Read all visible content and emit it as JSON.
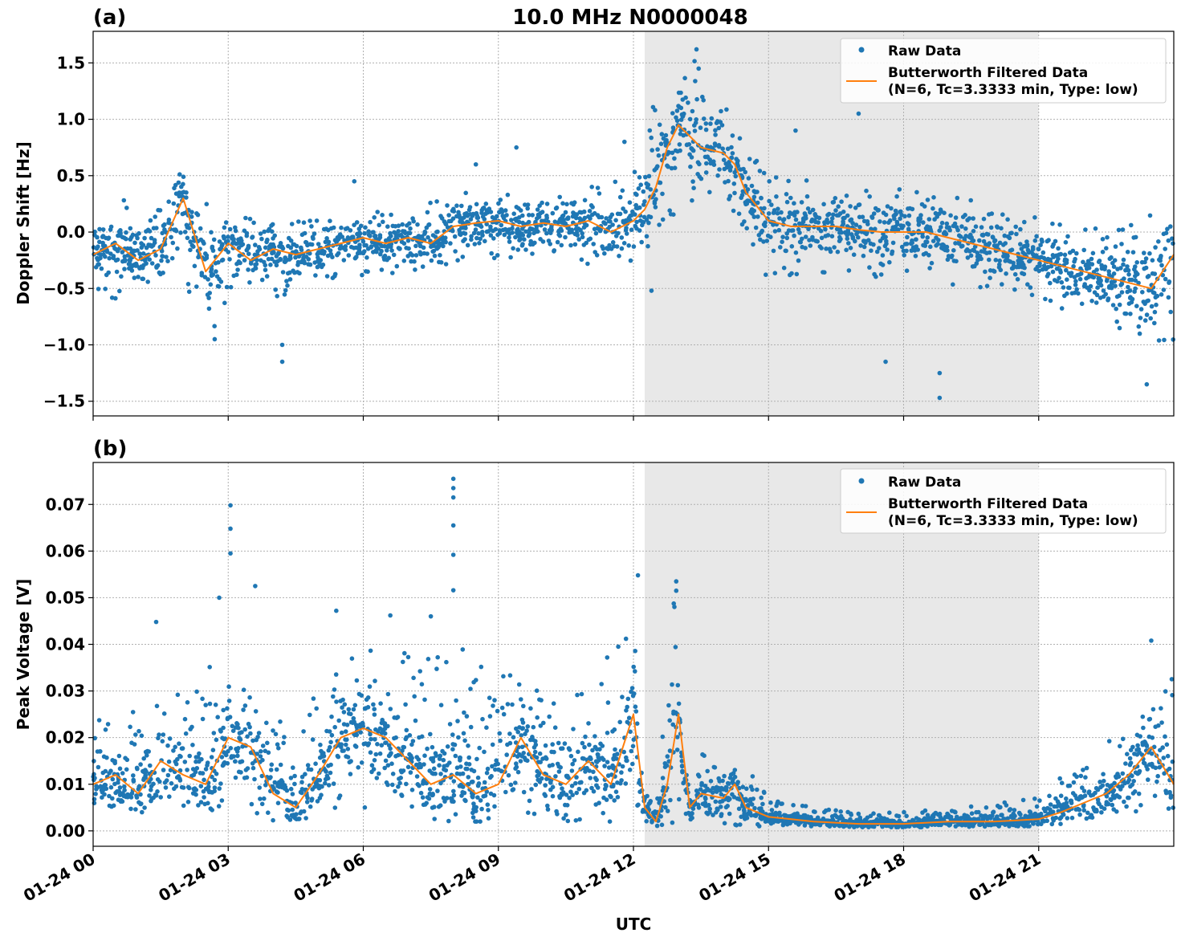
{
  "figure": {
    "title": "10.0 MHz N0000048",
    "xlabel": "UTC",
    "legend": {
      "raw_label": "Raw Data",
      "filtered_label_line1": "Butterworth Filtered Data",
      "filtered_label_line2": "(N=6, Tc=3.3333 min, Type: low)"
    },
    "shaded_interval_hours": [
      12.25,
      21.0
    ],
    "colors": {
      "raw": "#1f77b4",
      "filtered": "#ff7f0e",
      "shade": "#e8e8e8",
      "grid": "#b0b0b0"
    }
  },
  "chart_data": [
    {
      "type": "scatter",
      "panel_label": "(a)",
      "ylabel": "Doppler Shift [Hz]",
      "x_unit": "hours since 01-24 00 UTC",
      "xlim": [
        0,
        24
      ],
      "ylim": [
        -1.63,
        1.78
      ],
      "yticks": [
        1.5,
        1.0,
        0.5,
        0.0,
        -0.5,
        -1.0,
        -1.5
      ],
      "ytick_labels": [
        "1.5",
        "1.0",
        "0.5",
        "0.0",
        "−0.5",
        "−1.0",
        "−1.5"
      ],
      "xticks": [
        0,
        3,
        6,
        9,
        12,
        15,
        18,
        21
      ],
      "xtick_labels": [
        "01-24 00",
        "01-24 03",
        "01-24 06",
        "01-24 09",
        "01-24 12",
        "01-24 15",
        "01-24 18",
        "01-24 21"
      ],
      "grid": true,
      "legend_position": "top-right",
      "series": [
        {
          "name": "Butterworth Filtered Data",
          "x": [
            0,
            0.5,
            1,
            1.5,
            2,
            2.5,
            3,
            3.5,
            4,
            4.5,
            5,
            5.5,
            6,
            6.5,
            7,
            7.5,
            8,
            8.5,
            9,
            9.5,
            10,
            10.5,
            11,
            11.5,
            12,
            12.25,
            12.5,
            12.75,
            13,
            13.5,
            14,
            14.25,
            14.5,
            15,
            15.5,
            16,
            16.5,
            17,
            17.5,
            18,
            18.5,
            19,
            19.5,
            20,
            20.5,
            21,
            21.5,
            22,
            22.5,
            23,
            23.5,
            24
          ],
          "y": [
            -0.2,
            -0.1,
            -0.25,
            -0.15,
            0.3,
            -0.35,
            -0.1,
            -0.25,
            -0.15,
            -0.2,
            -0.15,
            -0.1,
            -0.05,
            -0.1,
            -0.05,
            -0.1,
            0.05,
            0.08,
            0.1,
            0.05,
            0.08,
            0.05,
            0.1,
            0.0,
            0.1,
            0.2,
            0.4,
            0.75,
            0.95,
            0.75,
            0.7,
            0.6,
            0.35,
            0.1,
            0.05,
            0.05,
            0.05,
            0.02,
            0.0,
            0.0,
            0.0,
            -0.05,
            -0.1,
            -0.15,
            -0.2,
            -0.25,
            -0.3,
            -0.35,
            -0.4,
            -0.45,
            -0.5,
            -0.2
          ]
        }
      ],
      "raw_envelope": {
        "name": "Raw Data",
        "x": [
          0,
          1,
          2,
          2.7,
          3,
          4,
          5,
          6,
          7,
          8,
          9,
          10,
          11,
          12,
          12.5,
          13,
          13.4,
          14,
          14.5,
          15,
          16,
          17,
          18,
          19,
          20,
          21,
          22,
          23,
          24
        ],
        "low": [
          -0.6,
          -0.6,
          -0.5,
          -0.95,
          -0.6,
          -0.6,
          -0.45,
          -0.4,
          -0.35,
          -0.3,
          -0.25,
          -0.3,
          -0.3,
          -0.25,
          -0.2,
          0.2,
          0.3,
          0.25,
          0.0,
          -0.45,
          -0.35,
          -0.4,
          -0.45,
          -0.5,
          -0.55,
          -0.6,
          -0.75,
          -0.95,
          -1.2
        ],
        "high": [
          0.25,
          0.3,
          0.55,
          0.2,
          0.15,
          0.15,
          0.15,
          0.2,
          0.2,
          0.35,
          0.35,
          0.35,
          0.4,
          0.5,
          1.2,
          1.35,
          1.55,
          1.2,
          0.8,
          0.5,
          0.45,
          0.45,
          0.4,
          0.35,
          0.25,
          0.15,
          0.1,
          0.1,
          0.2
        ]
      },
      "outliers": [
        {
          "x": 4.2,
          "y": -1.15
        },
        {
          "x": 4.2,
          "y": -1.0
        },
        {
          "x": 5.8,
          "y": 0.45
        },
        {
          "x": 8.5,
          "y": 0.6
        },
        {
          "x": 9.4,
          "y": 0.75
        },
        {
          "x": 11.8,
          "y": 0.8
        },
        {
          "x": 13.4,
          "y": 1.62
        },
        {
          "x": 15.6,
          "y": 0.9
        },
        {
          "x": 17.0,
          "y": 1.05
        },
        {
          "x": 17.6,
          "y": -1.15
        },
        {
          "x": 18.8,
          "y": -1.25
        },
        {
          "x": 18.8,
          "y": -1.47
        },
        {
          "x": 23.4,
          "y": -1.35
        },
        {
          "x": 2.7,
          "y": -0.95
        },
        {
          "x": 12.4,
          "y": -0.52
        }
      ]
    },
    {
      "type": "scatter",
      "panel_label": "(b)",
      "ylabel": "Peak Voltage [V]",
      "x_unit": "hours since 01-24 00 UTC",
      "xlim": [
        0,
        24
      ],
      "ylim": [
        -0.0033,
        0.079
      ],
      "yticks": [
        0.07,
        0.06,
        0.05,
        0.04,
        0.03,
        0.02,
        0.01,
        0.0
      ],
      "ytick_labels": [
        "0.07",
        "0.06",
        "0.05",
        "0.04",
        "0.03",
        "0.02",
        "0.01",
        "0.00"
      ],
      "xticks": [
        0,
        3,
        6,
        9,
        12,
        15,
        18,
        21
      ],
      "xtick_labels": [
        "01-24 00",
        "01-24 03",
        "01-24 06",
        "01-24 09",
        "01-24 12",
        "01-24 15",
        "01-24 18",
        "01-24 21"
      ],
      "grid": true,
      "legend_position": "top-right",
      "series": [
        {
          "name": "Butterworth Filtered Data",
          "x": [
            0,
            0.5,
            1,
            1.5,
            2,
            2.5,
            3,
            3.5,
            4,
            4.5,
            5,
            5.5,
            6,
            6.5,
            7,
            7.5,
            8,
            8.5,
            9,
            9.5,
            10,
            10.5,
            11,
            11.5,
            12,
            12.25,
            12.5,
            12.75,
            13,
            13.25,
            13.5,
            14,
            14.25,
            14.5,
            15,
            15.5,
            16,
            17,
            18,
            19,
            20,
            21,
            21.5,
            22,
            22.5,
            23,
            23.5,
            24
          ],
          "y": [
            0.01,
            0.012,
            0.008,
            0.015,
            0.012,
            0.01,
            0.02,
            0.018,
            0.008,
            0.005,
            0.012,
            0.02,
            0.022,
            0.02,
            0.015,
            0.01,
            0.012,
            0.008,
            0.01,
            0.02,
            0.012,
            0.01,
            0.015,
            0.01,
            0.025,
            0.005,
            0.002,
            0.01,
            0.025,
            0.005,
            0.008,
            0.007,
            0.01,
            0.005,
            0.003,
            0.0025,
            0.002,
            0.0015,
            0.0015,
            0.002,
            0.002,
            0.0025,
            0.004,
            0.006,
            0.008,
            0.012,
            0.018,
            0.01
          ]
        }
      ],
      "raw_envelope": {
        "name": "Raw Data",
        "x": [
          0,
          1,
          2,
          3,
          4,
          5,
          6,
          7,
          8,
          9,
          10,
          11,
          12,
          12.25,
          12.5,
          12.9,
          13.1,
          13.5,
          14,
          14.5,
          15,
          16,
          17,
          18,
          19,
          20,
          21,
          22,
          23,
          24
        ],
        "low": [
          0.004,
          0.004,
          0.004,
          0.004,
          0.002,
          0.003,
          0.004,
          0.003,
          0.002,
          0.002,
          0.002,
          0.002,
          0.002,
          0.001,
          0.001,
          0.001,
          0.001,
          0.001,
          0.001,
          0.001,
          0.001,
          0.001,
          0.0008,
          0.0008,
          0.0008,
          0.001,
          0.001,
          0.002,
          0.003,
          0.005
        ],
        "high": [
          0.03,
          0.025,
          0.03,
          0.04,
          0.025,
          0.03,
          0.04,
          0.04,
          0.04,
          0.035,
          0.03,
          0.03,
          0.05,
          0.01,
          0.005,
          0.05,
          0.01,
          0.02,
          0.015,
          0.015,
          0.007,
          0.005,
          0.004,
          0.004,
          0.005,
          0.006,
          0.008,
          0.015,
          0.025,
          0.035
        ]
      },
      "outliers": [
        {
          "x": 3.05,
          "y": 0.0698
        },
        {
          "x": 3.05,
          "y": 0.0648
        },
        {
          "x": 3.05,
          "y": 0.0595
        },
        {
          "x": 2.8,
          "y": 0.05
        },
        {
          "x": 3.6,
          "y": 0.0525
        },
        {
          "x": 5.4,
          "y": 0.0472
        },
        {
          "x": 8.0,
          "y": 0.0755
        },
        {
          "x": 8.0,
          "y": 0.0735
        },
        {
          "x": 8.0,
          "y": 0.0715
        },
        {
          "x": 8.0,
          "y": 0.0655
        },
        {
          "x": 8.0,
          "y": 0.0592
        },
        {
          "x": 8.0,
          "y": 0.0516
        },
        {
          "x": 12.1,
          "y": 0.0548
        },
        {
          "x": 12.95,
          "y": 0.0535
        },
        {
          "x": 12.95,
          "y": 0.0515
        },
        {
          "x": 23.5,
          "y": 0.0408
        },
        {
          "x": 1.4,
          "y": 0.0448
        },
        {
          "x": 6.6,
          "y": 0.0462
        },
        {
          "x": 7.5,
          "y": 0.046
        }
      ]
    }
  ]
}
